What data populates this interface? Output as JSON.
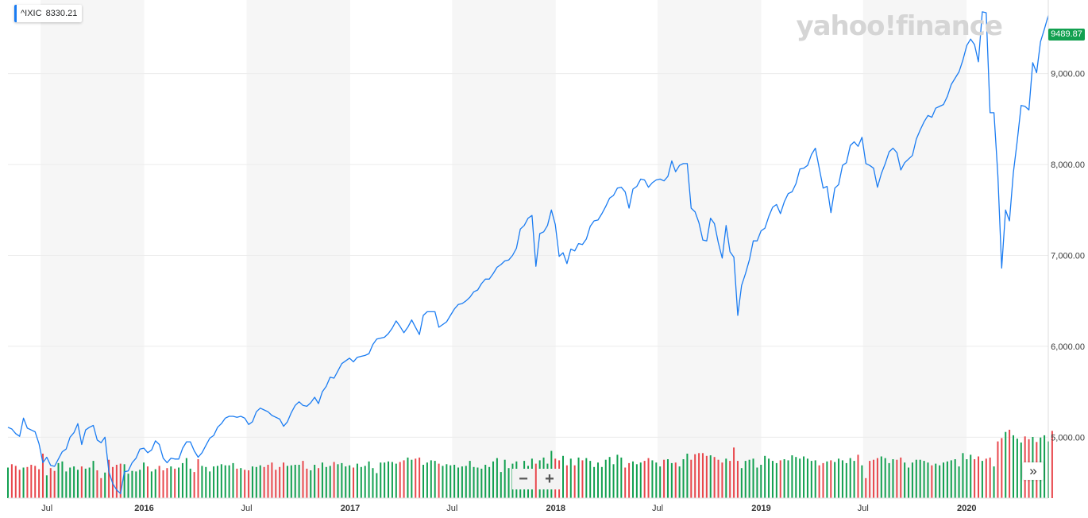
{
  "logo": {
    "text": "yahoo!finance"
  },
  "legend": {
    "symbol": "^IXIC",
    "value": "8330.21"
  },
  "last_price": "9489.87",
  "controls": {
    "zoom_out": "−",
    "zoom_in": "+",
    "expand": "»"
  },
  "colors": {
    "line": "#1a7cf2",
    "up_volume": "#12a050",
    "down_volume": "#e8474c",
    "price_tag": "#12a050"
  },
  "chart_data": {
    "type": "line",
    "title": "",
    "xlabel": "",
    "ylabel": "",
    "x_tick_labels": [
      "Jul",
      "2016",
      "Jul",
      "2017",
      "Jul",
      "2018",
      "Jul",
      "2019",
      "Jul",
      "2020"
    ],
    "y_tick_labels": [
      "9,000.00",
      "8,000.00",
      "7,000.00",
      "6,000.00",
      "5,000.00"
    ],
    "y_ticks": [
      9000,
      8000,
      7000,
      6000,
      5000
    ],
    "ylim": [
      4330,
      9810
    ],
    "x_range": [
      "2015-05-04",
      "2020-05-25"
    ],
    "grid": true,
    "legend_position": "top-left",
    "series": [
      {
        "frequency": "weekly",
        "start": "2015-05-04",
        "values": [
          5110,
          5090,
          5040,
          5010,
          5210,
          5100,
          5080,
          5060,
          4930,
          4720,
          4780,
          4690,
          4680,
          4760,
          4840,
          4870,
          5000,
          5050,
          5150,
          4920,
          5080,
          5110,
          5130,
          4970,
          4940,
          5000,
          4620,
          4490,
          4420,
          4380,
          4620,
          4630,
          4720,
          4770,
          4870,
          4880,
          4830,
          4860,
          4960,
          4920,
          4770,
          4720,
          4770,
          4760,
          4760,
          4880,
          4950,
          4950,
          4850,
          4780,
          4830,
          4910,
          4990,
          5020,
          5110,
          5150,
          5210,
          5230,
          5230,
          5220,
          5230,
          5210,
          5140,
          5170,
          5280,
          5320,
          5300,
          5280,
          5240,
          5220,
          5200,
          5120,
          5170,
          5270,
          5350,
          5390,
          5350,
          5340,
          5380,
          5440,
          5370,
          5500,
          5560,
          5660,
          5650,
          5730,
          5810,
          5840,
          5870,
          5830,
          5880,
          5890,
          5900,
          5920,
          6020,
          6080,
          6090,
          6100,
          6140,
          6200,
          6280,
          6220,
          6150,
          6210,
          6290,
          6210,
          6130,
          6340,
          6380,
          6380,
          6380,
          6210,
          6240,
          6270,
          6340,
          6410,
          6460,
          6470,
          6500,
          6540,
          6600,
          6620,
          6690,
          6740,
          6740,
          6800,
          6870,
          6900,
          6940,
          6950,
          7000,
          7080,
          7290,
          7330,
          7410,
          7440,
          6880,
          7240,
          7260,
          7330,
          7500,
          7340,
          6990,
          7030,
          6910,
          7070,
          7050,
          7130,
          7120,
          7180,
          7320,
          7380,
          7390,
          7460,
          7540,
          7630,
          7660,
          7740,
          7750,
          7700,
          7520,
          7730,
          7760,
          7840,
          7830,
          7750,
          7800,
          7830,
          7840,
          7820,
          7870,
          8040,
          7920,
          7990,
          8010,
          8010,
          7520,
          7480,
          7360,
          7170,
          7160,
          7410,
          7350,
          7140,
          6970,
          7330,
          7040,
          6980,
          6340,
          6670,
          6800,
          6950,
          7160,
          7160,
          7270,
          7300,
          7430,
          7530,
          7560,
          7460,
          7590,
          7680,
          7700,
          7790,
          7950,
          7960,
          7990,
          8110,
          8180,
          7960,
          7740,
          7760,
          7470,
          7740,
          7780,
          7990,
          8020,
          8210,
          8250,
          8200,
          8300,
          8010,
          7990,
          7960,
          7750,
          7900,
          8010,
          8140,
          8180,
          8130,
          7940,
          8020,
          8060,
          8100,
          8280,
          8380,
          8470,
          8540,
          8520,
          8620,
          8640,
          8660,
          8750,
          8880,
          8950,
          9020,
          9150,
          9310,
          9380,
          9320,
          9130,
          9680,
          9670,
          8570,
          8570,
          7880,
          6860,
          7500,
          7380,
          7910,
          8260,
          8650,
          8640,
          8600,
          9120,
          9010,
          9350,
          9490,
          9640
        ]
      }
    ],
    "volume": {
      "note": "weekly volume bars, relative heights 0-1, up/down coloring",
      "values": [
        0.55,
        0.61,
        0.58,
        0.51,
        0.55,
        0.56,
        0.6,
        0.58,
        0.52,
        0.8,
        0.41,
        0.54,
        0.49,
        0.63,
        0.66,
        0.48,
        0.55,
        0.57,
        0.51,
        0.57,
        0.53,
        0.55,
        0.67,
        0.5,
        0.36,
        0.46,
        0.69,
        0.56,
        0.6,
        0.62,
        0.61,
        0.44,
        0.49,
        0.48,
        0.51,
        0.64,
        0.57,
        0.48,
        0.52,
        0.58,
        0.5,
        0.54,
        0.57,
        0.53,
        0.55,
        0.63,
        0.72,
        0.53,
        0.47,
        0.7,
        0.58,
        0.56,
        0.48,
        0.57,
        0.58,
        0.61,
        0.59,
        0.59,
        0.63,
        0.53,
        0.54,
        0.51,
        0.5,
        0.57,
        0.56,
        0.59,
        0.56,
        0.6,
        0.64,
        0.51,
        0.56,
        0.64,
        0.58,
        0.59,
        0.6,
        0.6,
        0.67,
        0.53,
        0.5,
        0.6,
        0.54,
        0.64,
        0.56,
        0.58,
        0.65,
        0.61,
        0.63,
        0.57,
        0.59,
        0.55,
        0.62,
        0.56,
        0.58,
        0.66,
        0.54,
        0.45,
        0.64,
        0.64,
        0.66,
        0.65,
        0.62,
        0.65,
        0.68,
        0.73,
        0.69,
        0.71,
        0.73,
        0.6,
        0.64,
        0.68,
        0.67,
        0.62,
        0.58,
        0.61,
        0.59,
        0.6,
        0.55,
        0.57,
        0.58,
        0.67,
        0.56,
        0.55,
        0.53,
        0.6,
        0.56,
        0.66,
        0.72,
        0.47,
        0.69,
        0.54,
        0.62,
        0.66,
        0.51,
        0.67,
        0.58,
        0.71,
        0.62,
        0.68,
        0.73,
        0.62,
        0.85,
        0.71,
        0.68,
        0.76,
        0.59,
        0.71,
        0.59,
        0.73,
        0.68,
        0.72,
        0.67,
        0.56,
        0.64,
        0.56,
        0.69,
        0.74,
        0.61,
        0.78,
        0.73,
        0.55,
        0.63,
        0.66,
        0.61,
        0.64,
        0.67,
        0.72,
        0.68,
        0.64,
        0.57,
        0.69,
        0.7,
        0.63,
        0.64,
        0.57,
        0.7,
        0.8,
        0.69,
        0.79,
        0.81,
        0.81,
        0.76,
        0.77,
        0.74,
        0.69,
        0.64,
        0.71,
        0.67,
        0.91,
        0.67,
        0.54,
        0.67,
        0.69,
        0.71,
        0.55,
        0.6,
        0.76,
        0.71,
        0.67,
        0.63,
        0.68,
        0.7,
        0.68,
        0.77,
        0.74,
        0.71,
        0.75,
        0.71,
        0.67,
        0.68,
        0.59,
        0.63,
        0.66,
        0.68,
        0.65,
        0.71,
        0.68,
        0.63,
        0.72,
        0.67,
        0.78,
        0.59,
        0.36,
        0.67,
        0.69,
        0.72,
        0.75,
        0.72,
        0.63,
        0.7,
        0.69,
        0.73,
        0.64,
        0.55,
        0.64,
        0.69,
        0.69,
        0.67,
        0.64,
        0.59,
        0.62,
        0.59,
        0.64,
        0.66,
        0.68,
        0.7,
        0.57,
        0.81,
        0.7,
        0.78,
        0.7,
        0.75,
        0.67,
        0.71,
        0.73,
        0.57,
        1.02,
        1.08,
        1.19,
        1.23,
        1.13,
        1.07,
        1.0,
        1.11,
        1.06,
        1.1,
        1.01,
        1.09,
        1.13,
        1.02,
        1.21
      ]
    }
  }
}
